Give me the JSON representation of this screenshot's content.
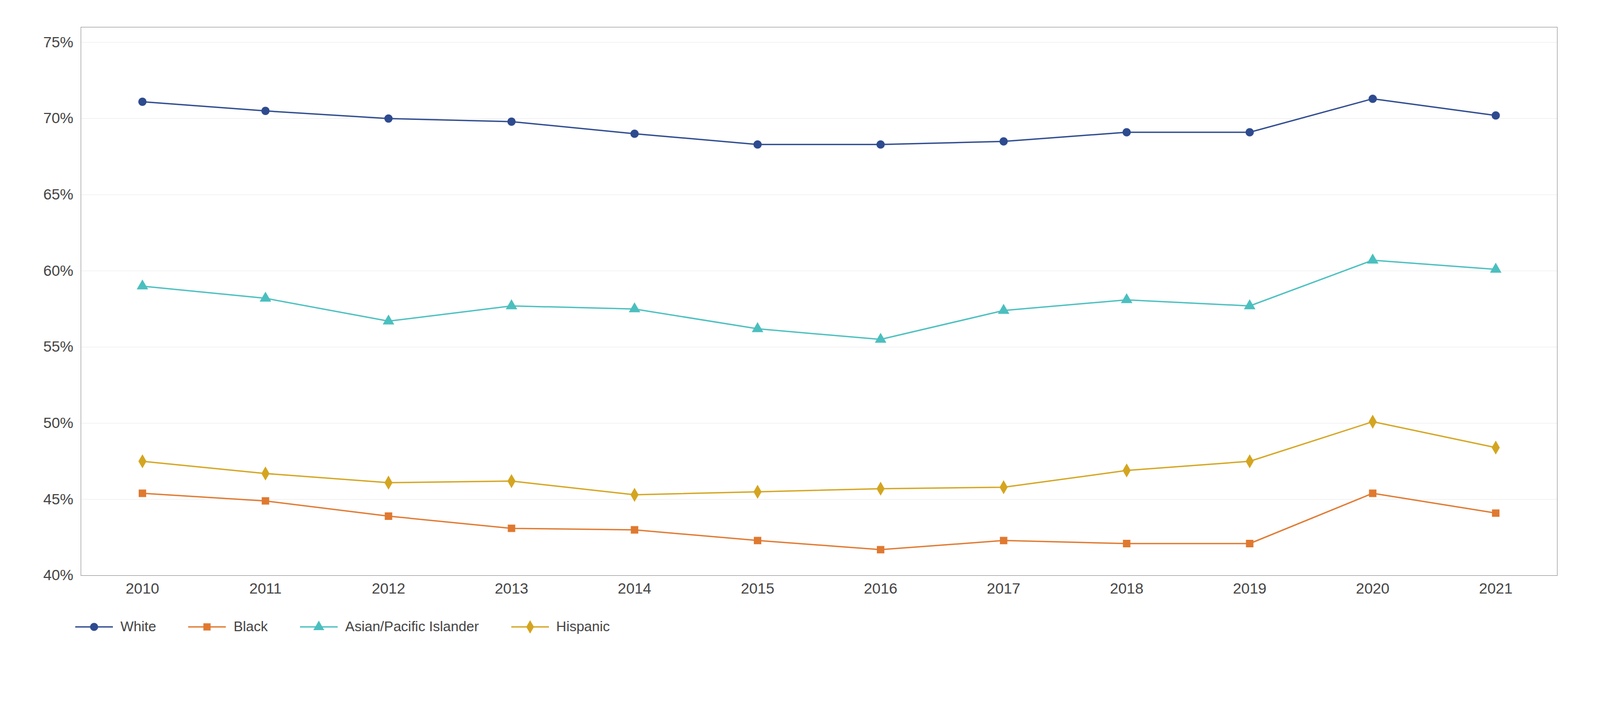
{
  "chart_data": {
    "type": "line",
    "x": [
      2010,
      2011,
      2012,
      2013,
      2014,
      2015,
      2016,
      2017,
      2018,
      2019,
      2020,
      2021
    ],
    "series": [
      {
        "name": "White",
        "color": "#2e4b8f",
        "marker": "circle",
        "values": [
          71.1,
          70.5,
          70.0,
          69.8,
          69.0,
          68.3,
          68.3,
          68.5,
          69.1,
          69.1,
          71.3,
          70.2
        ]
      },
      {
        "name": "Black",
        "color": "#e07930",
        "marker": "square",
        "values": [
          45.4,
          44.9,
          43.9,
          43.1,
          43.0,
          42.3,
          41.7,
          42.3,
          42.1,
          42.1,
          45.4,
          44.1
        ]
      },
      {
        "name": "Asian/Pacific Islander",
        "color": "#4bbfbf",
        "marker": "triangle",
        "values": [
          59.0,
          58.2,
          56.7,
          57.7,
          57.5,
          56.2,
          55.5,
          57.4,
          58.1,
          57.7,
          60.7,
          60.1
        ]
      },
      {
        "name": "Hispanic",
        "color": "#d4a520",
        "marker": "diamond",
        "values": [
          47.5,
          46.7,
          46.1,
          46.2,
          45.3,
          45.5,
          45.7,
          45.8,
          46.9,
          47.5,
          50.1,
          48.4
        ]
      }
    ],
    "xlim": [
      2009.5,
      2021.5
    ],
    "xticks": [
      2010,
      2011,
      2012,
      2013,
      2014,
      2015,
      2016,
      2017,
      2018,
      2019,
      2020,
      2021
    ],
    "ylim": [
      40,
      76
    ],
    "yticks": [
      {
        "value": 40,
        "label": "40%"
      },
      {
        "value": 45,
        "label": "45%"
      },
      {
        "value": 50,
        "label": "50%"
      },
      {
        "value": 55,
        "label": "55%"
      },
      {
        "value": 60,
        "label": "60%"
      },
      {
        "value": 65,
        "label": "65%"
      },
      {
        "value": 70,
        "label": "70%"
      },
      {
        "value": 75,
        "label": "75%"
      }
    ],
    "grid": true,
    "legend": "bottom"
  }
}
